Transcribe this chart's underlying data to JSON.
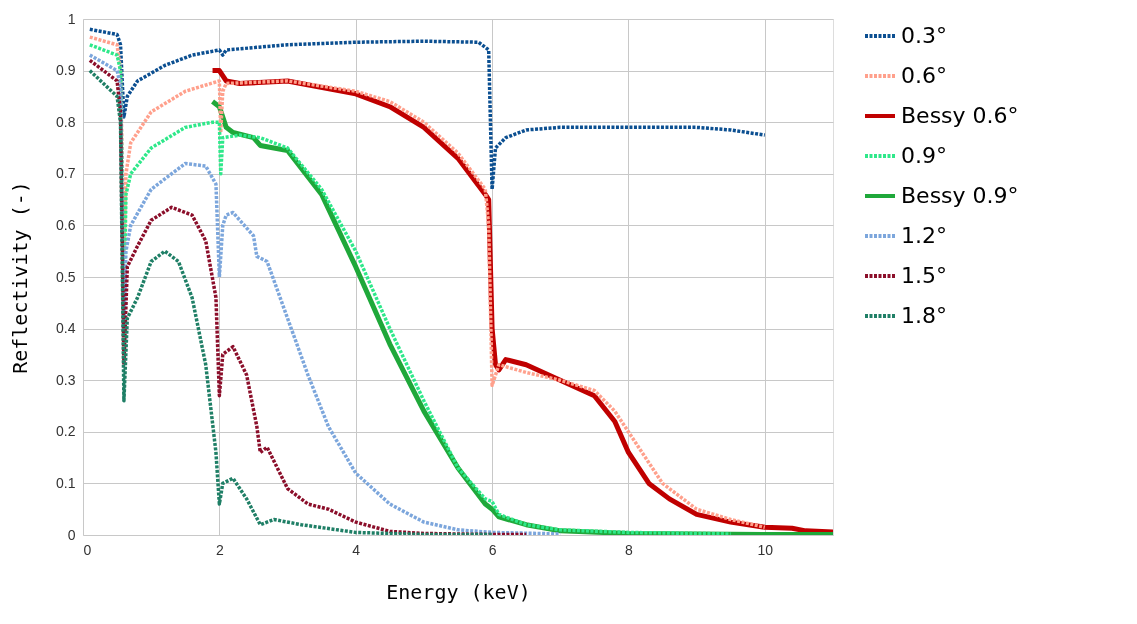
{
  "chart_data": {
    "type": "line",
    "xlabel": "Energy (keV)",
    "ylabel": "Reflectivity (-)",
    "xlim": [
      0,
      11
    ],
    "xticks": [
      0,
      2,
      4,
      6,
      8,
      10
    ],
    "ylim": [
      0,
      1
    ],
    "yticks": [
      0,
      0.1,
      0.2,
      0.3,
      0.4,
      0.5,
      0.6,
      0.7,
      0.8,
      0.9,
      1
    ],
    "grid": true,
    "legend": "right",
    "marker": "none",
    "series": [
      {
        "name": "0.3°",
        "color": "#0b4f91",
        "line_style": "dotted",
        "x": [
          0.1,
          0.5,
          0.55,
          0.6,
          0.65,
          0.8,
          1.2,
          1.6,
          2.0,
          2.05,
          2.1,
          3,
          4,
          5,
          5.8,
          5.95,
          6.0,
          6.05,
          6.2,
          6.5,
          7,
          8,
          9,
          9.5,
          10
        ],
        "values": [
          0.98,
          0.97,
          0.95,
          0.81,
          0.85,
          0.88,
          0.91,
          0.93,
          0.94,
          0.93,
          0.94,
          0.95,
          0.955,
          0.957,
          0.955,
          0.94,
          0.67,
          0.75,
          0.77,
          0.785,
          0.79,
          0.79,
          0.79,
          0.785,
          0.775
        ]
      },
      {
        "name": "0.6°",
        "color": "#ffa08c",
        "line_style": "dotted",
        "x": [
          0.1,
          0.5,
          0.55,
          0.6,
          0.63,
          0.7,
          1.0,
          1.5,
          2.0,
          2.02,
          2.05,
          2.1,
          3,
          4,
          4.5,
          5,
          5.5,
          5.9,
          5.95,
          6.0,
          6.1,
          6.5,
          7,
          7.5,
          7.8,
          8.2,
          8.5,
          9,
          9.5,
          10
        ],
        "values": [
          0.965,
          0.95,
          0.9,
          0.55,
          0.7,
          0.76,
          0.82,
          0.86,
          0.88,
          0.78,
          0.86,
          0.875,
          0.88,
          0.86,
          0.84,
          0.8,
          0.74,
          0.67,
          0.6,
          0.29,
          0.33,
          0.315,
          0.3,
          0.28,
          0.24,
          0.16,
          0.1,
          0.05,
          0.03,
          0.015
        ]
      },
      {
        "name": "Bessy 0.6°",
        "color": "#c00000",
        "line_style": "solid",
        "x": [
          1.9,
          2.0,
          2.1,
          2.3,
          3,
          4,
          4.5,
          5,
          5.5,
          5.9,
          5.95,
          6.0,
          6.05,
          6.1,
          6.2,
          6.5,
          7,
          7.5,
          7.8,
          8,
          8.3,
          8.6,
          9,
          9.5,
          10,
          10.4,
          10.6,
          11
        ],
        "values": [
          0.9,
          0.9,
          0.88,
          0.875,
          0.88,
          0.855,
          0.83,
          0.79,
          0.73,
          0.66,
          0.65,
          0.4,
          0.33,
          0.32,
          0.34,
          0.33,
          0.3,
          0.27,
          0.22,
          0.16,
          0.1,
          0.07,
          0.04,
          0.025,
          0.015,
          0.013,
          0.008,
          0.006
        ]
      },
      {
        "name": "0.9°",
        "color": "#2ee88a",
        "line_style": "dotted",
        "x": [
          0.1,
          0.5,
          0.55,
          0.6,
          0.63,
          0.7,
          1.0,
          1.5,
          1.9,
          2.0,
          2.02,
          2.05,
          2.3,
          2.6,
          3,
          3.5,
          4,
          4.5,
          5,
          5.5,
          5.9,
          6.0,
          6.1,
          6.5,
          7,
          8,
          9,
          9.5
        ],
        "values": [
          0.95,
          0.93,
          0.9,
          0.43,
          0.66,
          0.7,
          0.75,
          0.79,
          0.8,
          0.8,
          0.7,
          0.77,
          0.775,
          0.77,
          0.75,
          0.67,
          0.55,
          0.4,
          0.26,
          0.13,
          0.07,
          0.065,
          0.04,
          0.02,
          0.01,
          0.005,
          0.003,
          0.002
        ]
      },
      {
        "name": "Bessy 0.9°",
        "color": "#1fa83a",
        "line_style": "solid",
        "x": [
          1.9,
          2.0,
          2.1,
          2.2,
          2.5,
          2.6,
          3,
          3.5,
          4,
          4.5,
          5,
          5.5,
          5.9,
          6.0,
          6.1,
          6.5,
          7,
          8,
          9,
          10,
          11
        ],
        "values": [
          0.84,
          0.83,
          0.79,
          0.78,
          0.77,
          0.755,
          0.745,
          0.66,
          0.52,
          0.37,
          0.24,
          0.13,
          0.06,
          0.05,
          0.035,
          0.02,
          0.008,
          0.003,
          0.002,
          0.001,
          0.001
        ]
      },
      {
        "name": "1.2°",
        "color": "#7ca6dc",
        "line_style": "dotted",
        "x": [
          0.1,
          0.5,
          0.55,
          0.6,
          0.63,
          0.7,
          1.0,
          1.5,
          1.8,
          1.95,
          2.0,
          2.05,
          2.1,
          2.2,
          2.5,
          2.55,
          2.7,
          3.0,
          3.3,
          3.6,
          4,
          4.5,
          5,
          5.5,
          6,
          7
        ],
        "values": [
          0.93,
          0.9,
          0.87,
          0.4,
          0.55,
          0.6,
          0.67,
          0.72,
          0.715,
          0.68,
          0.5,
          0.6,
          0.62,
          0.625,
          0.58,
          0.54,
          0.53,
          0.42,
          0.31,
          0.21,
          0.12,
          0.06,
          0.025,
          0.01,
          0.005,
          0.002
        ]
      },
      {
        "name": "1.5°",
        "color": "#8b0e2a",
        "line_style": "dotted",
        "x": [
          0.1,
          0.5,
          0.55,
          0.6,
          0.65,
          0.8,
          1.0,
          1.3,
          1.6,
          1.8,
          1.95,
          2.0,
          2.05,
          2.2,
          2.4,
          2.55,
          2.6,
          2.7,
          3.0,
          3.3,
          3.6,
          4,
          4.5,
          5,
          6,
          6.5
        ],
        "values": [
          0.92,
          0.88,
          0.82,
          0.33,
          0.52,
          0.56,
          0.61,
          0.635,
          0.62,
          0.57,
          0.46,
          0.27,
          0.35,
          0.365,
          0.31,
          0.21,
          0.16,
          0.17,
          0.09,
          0.06,
          0.05,
          0.025,
          0.007,
          0.003,
          0.001,
          0.001
        ]
      },
      {
        "name": "1.8°",
        "color": "#1f7f66",
        "line_style": "dotted",
        "x": [
          0.1,
          0.5,
          0.55,
          0.6,
          0.65,
          0.8,
          1.0,
          1.2,
          1.4,
          1.6,
          1.8,
          1.95,
          2.0,
          2.05,
          2.2,
          2.4,
          2.6,
          2.8,
          3.2,
          4,
          5,
          6
        ],
        "values": [
          0.9,
          0.85,
          0.8,
          0.26,
          0.42,
          0.46,
          0.53,
          0.55,
          0.53,
          0.46,
          0.33,
          0.16,
          0.06,
          0.1,
          0.11,
          0.07,
          0.02,
          0.03,
          0.02,
          0.005,
          0.001,
          0.001
        ]
      }
    ]
  }
}
